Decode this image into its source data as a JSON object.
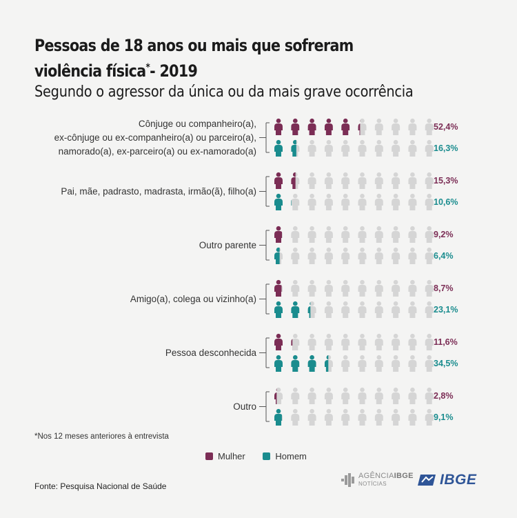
{
  "title": {
    "line1": "Pessoas de 18 anos ou mais que sofreram",
    "line2_main": "violência física",
    "line2_sup": "*",
    "line2_end": "- 2019"
  },
  "subtitle": "Segundo o agressor da única ou da mais grave ocorrência",
  "colors": {
    "mulher": "#7b2d55",
    "homem": "#1a8c8e",
    "empty": "#d5d5d5"
  },
  "chart_data": {
    "type": "pictogram",
    "icons_per_row": 10,
    "unit": "%",
    "categories": [
      {
        "label_lines": [
          "Cônjuge ou companheiro(a),",
          "ex-cônjuge ou ex-companheiro(a) ou parceiro(a),",
          "namorado(a), ex-parceiro(a) ou ex-namorado(a)"
        ],
        "mulher": 52.4,
        "homem": 16.3,
        "mulher_label": "52,4%",
        "homem_label": "16,3%"
      },
      {
        "label_lines": [
          "Pai, mãe, padrasto, madrasta, irmão(ã), filho(a)"
        ],
        "mulher": 15.3,
        "homem": 10.6,
        "mulher_label": "15,3%",
        "homem_label": "10,6%"
      },
      {
        "label_lines": [
          "Outro parente"
        ],
        "mulher": 9.2,
        "homem": 6.4,
        "mulher_label": "9,2%",
        "homem_label": "6,4%"
      },
      {
        "label_lines": [
          "Amigo(a), colega ou vizinho(a)"
        ],
        "mulher": 8.7,
        "homem": 23.1,
        "mulher_label": "8,7%",
        "homem_label": "23,1%"
      },
      {
        "label_lines": [
          "Pessoa desconhecida"
        ],
        "mulher": 11.6,
        "homem": 34.5,
        "mulher_label": "11,6%",
        "homem_label": "34,5%"
      },
      {
        "label_lines": [
          "Outro"
        ],
        "mulher": 2.8,
        "homem": 9.1,
        "mulher_label": "2,8%",
        "homem_label": "9,1%"
      }
    ],
    "series": [
      {
        "name": "Mulher",
        "key": "mulher"
      },
      {
        "name": "Homem",
        "key": "homem"
      }
    ]
  },
  "footnote": "*Nos 12 meses anteriores à entrevista",
  "legend": {
    "mulher": "Mulher",
    "homem": "Homem"
  },
  "source": "Fonte: Pesquisa Nacional de Saúde",
  "logos": {
    "agencia_l1a": "AGÊNCIA",
    "agencia_l1b": "IBGE",
    "agencia_l2": "NOTÍCIAS",
    "ibge": "IBGE"
  }
}
